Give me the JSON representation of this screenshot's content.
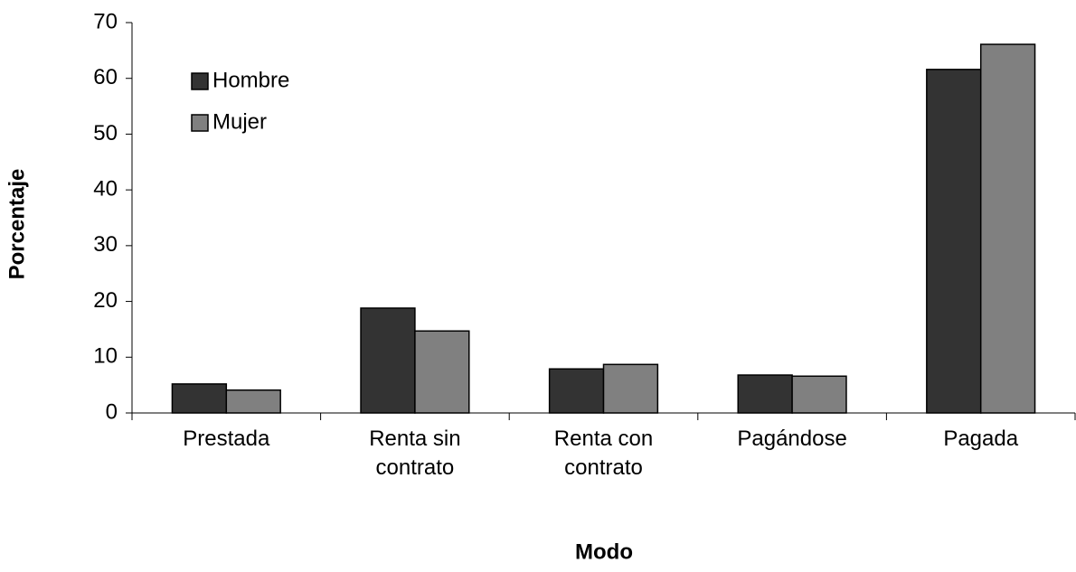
{
  "chart_data": {
    "type": "bar",
    "x_label": "Modo",
    "y_label": "Porcentaje",
    "categories": [
      "Prestada",
      "Renta sin contrato",
      "Renta con contrato",
      "Pagándose",
      "Pagada"
    ],
    "series": [
      {
        "name": "Hombre",
        "color": "#333333",
        "values": [
          5.2,
          18.8,
          7.9,
          6.8,
          61.6
        ]
      },
      {
        "name": "Mujer",
        "color": "#808080",
        "values": [
          4.1,
          14.7,
          8.7,
          6.6,
          66.1
        ]
      }
    ],
    "ylim": [
      0,
      70
    ],
    "yticks": [
      0,
      10,
      20,
      30,
      40,
      50,
      60,
      70
    ],
    "grid": false,
    "legend": "upper left"
  }
}
